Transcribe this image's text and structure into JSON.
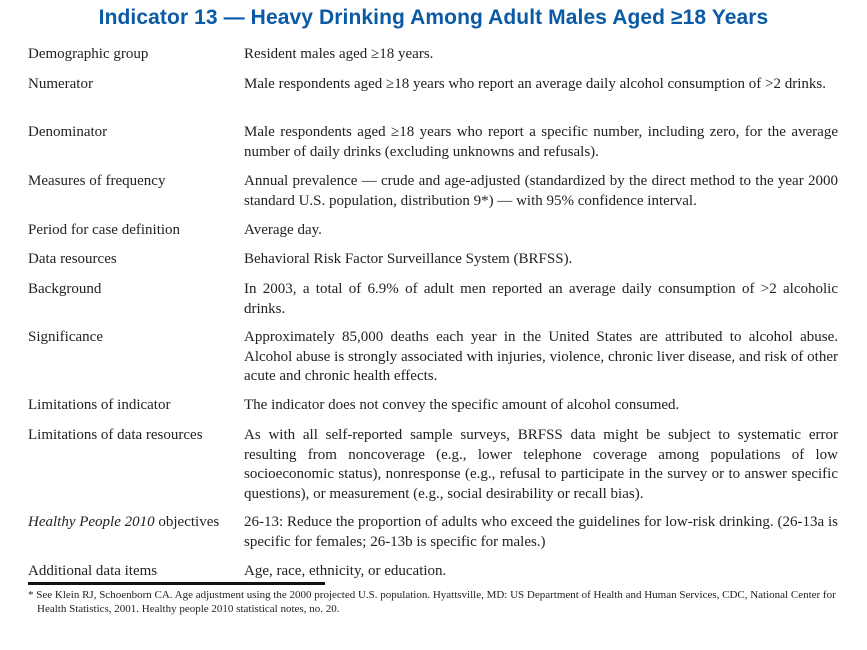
{
  "title": "Indicator 13 — Heavy Drinking Among Adult Males Aged ≥18 Years",
  "rows": [
    {
      "label": "Demographic group",
      "value": "Resident males aged ≥18 years."
    },
    {
      "label": "Numerator",
      "value": "Male respondents aged ≥18 years who report an average daily alcohol consumption of >2 drinks."
    },
    {
      "label": "Denominator",
      "value": "Male respondents aged ≥18 years who report a specific number, including zero, for the average number of daily drinks (excluding unknowns and refusals)."
    },
    {
      "label": "Measures of frequency",
      "value": "Annual prevalence — crude and age-adjusted (standardized by the direct method to the year 2000 standard U.S. population, distribution 9*) — with 95% confidence interval."
    },
    {
      "label": "Period for case definition",
      "value": "Average day."
    },
    {
      "label": "Data resources",
      "value": "Behavioral Risk Factor Surveillance System (BRFSS)."
    },
    {
      "label": "Background",
      "value": "In 2003, a total of 6.9% of adult men reported an average daily consumption of >2 alcoholic drinks."
    },
    {
      "label": "Significance",
      "value": "Approximately 85,000 deaths each year in the United States are attributed to alcohol abuse. Alcohol abuse is strongly associated with injuries, violence, chronic liver disease, and risk of other acute and chronic health effects."
    },
    {
      "label": "Limitations of indicator",
      "value": "The indicator does not convey the specific amount of alcohol consumed."
    },
    {
      "label": "Limitations of data resources",
      "value": "As with all self-reported sample surveys, BRFSS data might be subject to systematic error resulting from noncoverage (e.g., lower telephone coverage among populations of low socioeconomic status), nonresponse (e.g., refusal to participate in the survey or to answer specific questions), or measurement (e.g., social desirability or recall bias)."
    },
    {
      "label_italic": "Healthy People 2010",
      "label": " objectives",
      "value": "26-13: Reduce the proportion of adults who exceed the guidelines for low-risk drinking. (26-13a is specific for females; 26-13b is specific for males.)"
    },
    {
      "label": "Additional data items",
      "value": "Age, race, ethnicity, or education."
    }
  ],
  "footnote": "* See Klein RJ, Schoenborn CA. Age adjustment using the 2000 projected U.S. population. Hyattsville, MD: US Department of Health and Human Services, CDC, National Center for Health Statistics, 2001. Healthy people 2010 statistical notes, no. 20."
}
